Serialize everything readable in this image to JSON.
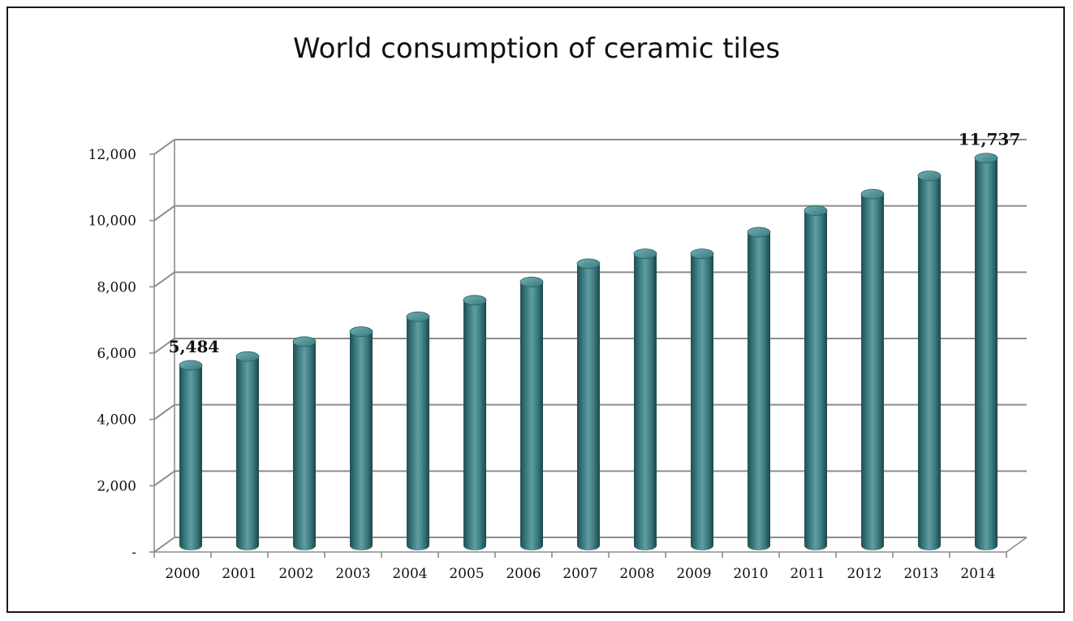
{
  "chart_data": {
    "type": "bar",
    "title": "World consumption of ceramic tiles",
    "xlabel": "",
    "ylabel": "",
    "categories": [
      "2000",
      "2001",
      "2002",
      "2003",
      "2004",
      "2005",
      "2006",
      "2007",
      "2008",
      "2009",
      "2010",
      "2011",
      "2012",
      "2013",
      "2014"
    ],
    "series": [
      {
        "values": [
          5484,
          5750,
          6200,
          6500,
          6950,
          7450,
          8000,
          8550,
          8850,
          8850,
          9500,
          10150,
          10650,
          11200,
          11737
        ]
      }
    ],
    "ylim": [
      0,
      12000
    ],
    "yticks": [
      0,
      2000,
      4000,
      6000,
      8000,
      10000,
      12000
    ],
    "ytick_labels": [
      "-",
      "2,000",
      "4,000",
      "6,000",
      "8,000",
      "10,000",
      "12,000"
    ],
    "data_labels": [
      {
        "category": "2000",
        "text": "5,484"
      },
      {
        "category": "2014",
        "text": "11,737"
      }
    ],
    "grid": true,
    "legend": "none",
    "bar_color": "#3e7b7f"
  }
}
